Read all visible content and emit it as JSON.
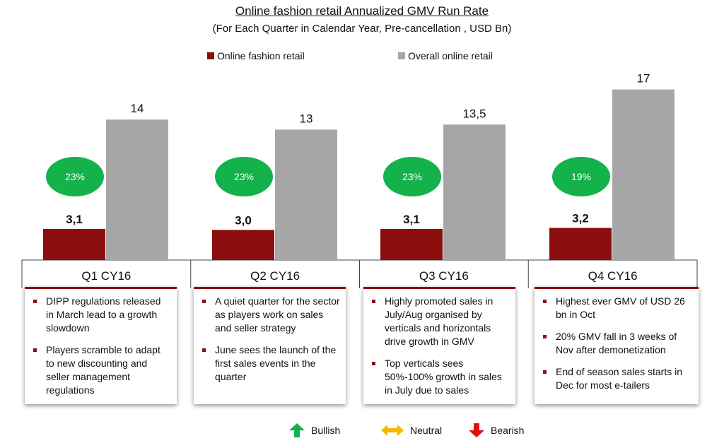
{
  "chart_data": {
    "type": "bar",
    "title": "Online fashion retail Annualized GMV Run Rate",
    "subtitle": "(For Each Quarter in Calendar Year, Pre-cancellation , USD Bn)",
    "categories": [
      "Q1 CY16",
      "Q2 CY16",
      "Q3 CY16",
      "Q4 CY16"
    ],
    "series": [
      {
        "name": "Online fashion retail",
        "color": "#8b0e0e",
        "values": [
          3.1,
          3.0,
          3.1,
          3.2
        ],
        "labels": [
          "3,1",
          "3,0",
          "3,1",
          "3,2"
        ]
      },
      {
        "name": "Overall online retail",
        "color": "#a6a6a6",
        "values": [
          14,
          13,
          13.5,
          17
        ],
        "labels": [
          "14",
          "13",
          "13,5",
          "17"
        ]
      }
    ],
    "share_badges": [
      "23%",
      "23%",
      "23%",
      "19%"
    ],
    "badge_color": "#13b24b",
    "legend_position": "top",
    "ylim": [
      0,
      17
    ],
    "grid": false
  },
  "notes": [
    [
      "DIPP regulations released in March lead to a growth slowdown",
      "Players scramble to adapt to new discounting and seller management regulations"
    ],
    [
      "A quiet quarter for the sector as players work on sales and seller strategy",
      "June sees the launch of the first sales events in the quarter"
    ],
    [
      "Highly promoted sales in July/Aug organised by verticals and horizontals drive growth in GMV",
      "Top verticals sees 50%-100% growth in sales in July due to sales"
    ],
    [
      "Highest ever GMV of USD 26 bn in Oct",
      "20% GMV fall in 3 weeks of Nov after demonetization",
      "End of season sales starts in Dec for most e-tailers"
    ]
  ],
  "sentiment_key": [
    {
      "label": "Bullish",
      "icon": "green-up-arrow-icon",
      "color": "#13b24b"
    },
    {
      "label": "Neutral",
      "icon": "yellow-double-arrow-icon",
      "color": "#f5b800"
    },
    {
      "label": "Bearish",
      "icon": "red-down-arrow-icon",
      "color": "#e01010"
    }
  ]
}
